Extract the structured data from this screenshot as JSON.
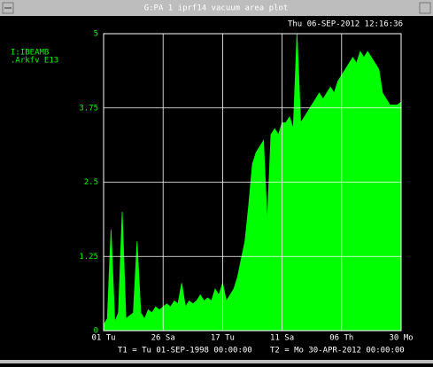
{
  "window_title": "G:PA 1 iprf14 vacuum area plot",
  "timestamp": "Thu 06-SEP-2012 12:16:36",
  "chart_data": {
    "type": "area",
    "device_labels": [
      "I:IBEAMB",
      ".Arkfv  E13"
    ],
    "t1_label": "T1 = Tu 01-SEP-1998 00:00:00",
    "t2_label": "T2 = Mo 30-APR-2012 00:00:00",
    "xlim": [
      0,
      5
    ],
    "xticks": [
      {
        "value": 0,
        "label": "01 Tu"
      },
      {
        "value": 1,
        "label": "26 Sa"
      },
      {
        "value": 2,
        "label": "17 Tu"
      },
      {
        "value": 3,
        "label": "11 Sa"
      },
      {
        "value": 4,
        "label": "06 Th"
      },
      {
        "value": 5,
        "label": "30 Mo"
      }
    ],
    "ylim": [
      0,
      5
    ],
    "yticks": [
      0,
      1.25,
      2.5,
      3.75,
      5
    ],
    "grid": true,
    "series": [
      {
        "color": "#00ff00",
        "x": [
          0,
          0.0625,
          0.125,
          0.1875,
          0.25,
          0.3125,
          0.375,
          0.4375,
          0.5,
          0.5625,
          0.625,
          0.6875,
          0.75,
          0.8125,
          0.875,
          0.9375,
          1,
          1.0625,
          1.125,
          1.1875,
          1.25,
          1.3125,
          1.375,
          1.4375,
          1.5,
          1.5625,
          1.625,
          1.6875,
          1.75,
          1.8125,
          1.875,
          1.9375,
          2,
          2.0625,
          2.125,
          2.1875,
          2.25,
          2.3125,
          2.375,
          2.4375,
          2.5,
          2.5625,
          2.625,
          2.6875,
          2.75,
          2.8125,
          2.875,
          2.9375,
          3,
          3.0625,
          3.125,
          3.1875,
          3.25,
          3.3125,
          3.375,
          3.4375,
          3.5,
          3.5625,
          3.625,
          3.6875,
          3.75,
          3.8125,
          3.875,
          3.9375,
          4,
          4.0625,
          4.125,
          4.1875,
          4.25,
          4.3125,
          4.375,
          4.4375,
          4.5,
          4.5625,
          4.625,
          4.6875,
          4.75,
          4.8125,
          4.875,
          4.9375,
          5
        ],
        "values": [
          0.1,
          0.2,
          1.7,
          0.15,
          0.3,
          2.0,
          0.2,
          0.25,
          0.3,
          1.5,
          0.3,
          0.2,
          0.35,
          0.3,
          0.4,
          0.35,
          0.4,
          0.45,
          0.4,
          0.5,
          0.45,
          0.8,
          0.4,
          0.5,
          0.45,
          0.5,
          0.6,
          0.5,
          0.55,
          0.5,
          0.7,
          0.6,
          0.8,
          0.5,
          0.6,
          0.7,
          0.9,
          1.2,
          1.5,
          2.1,
          2.8,
          3.0,
          3.1,
          3.2,
          1.8,
          3.3,
          3.4,
          3.3,
          3.5,
          3.5,
          3.6,
          3.4,
          5.0,
          3.5,
          3.6,
          3.7,
          3.8,
          3.9,
          4.0,
          3.9,
          4.0,
          4.1,
          4.0,
          4.2,
          4.3,
          4.4,
          4.5,
          4.6,
          4.5,
          4.7,
          4.6,
          4.7,
          4.6,
          4.5,
          4.4,
          4.0,
          3.9,
          3.8,
          3.8,
          3.8,
          3.85
        ]
      }
    ]
  }
}
